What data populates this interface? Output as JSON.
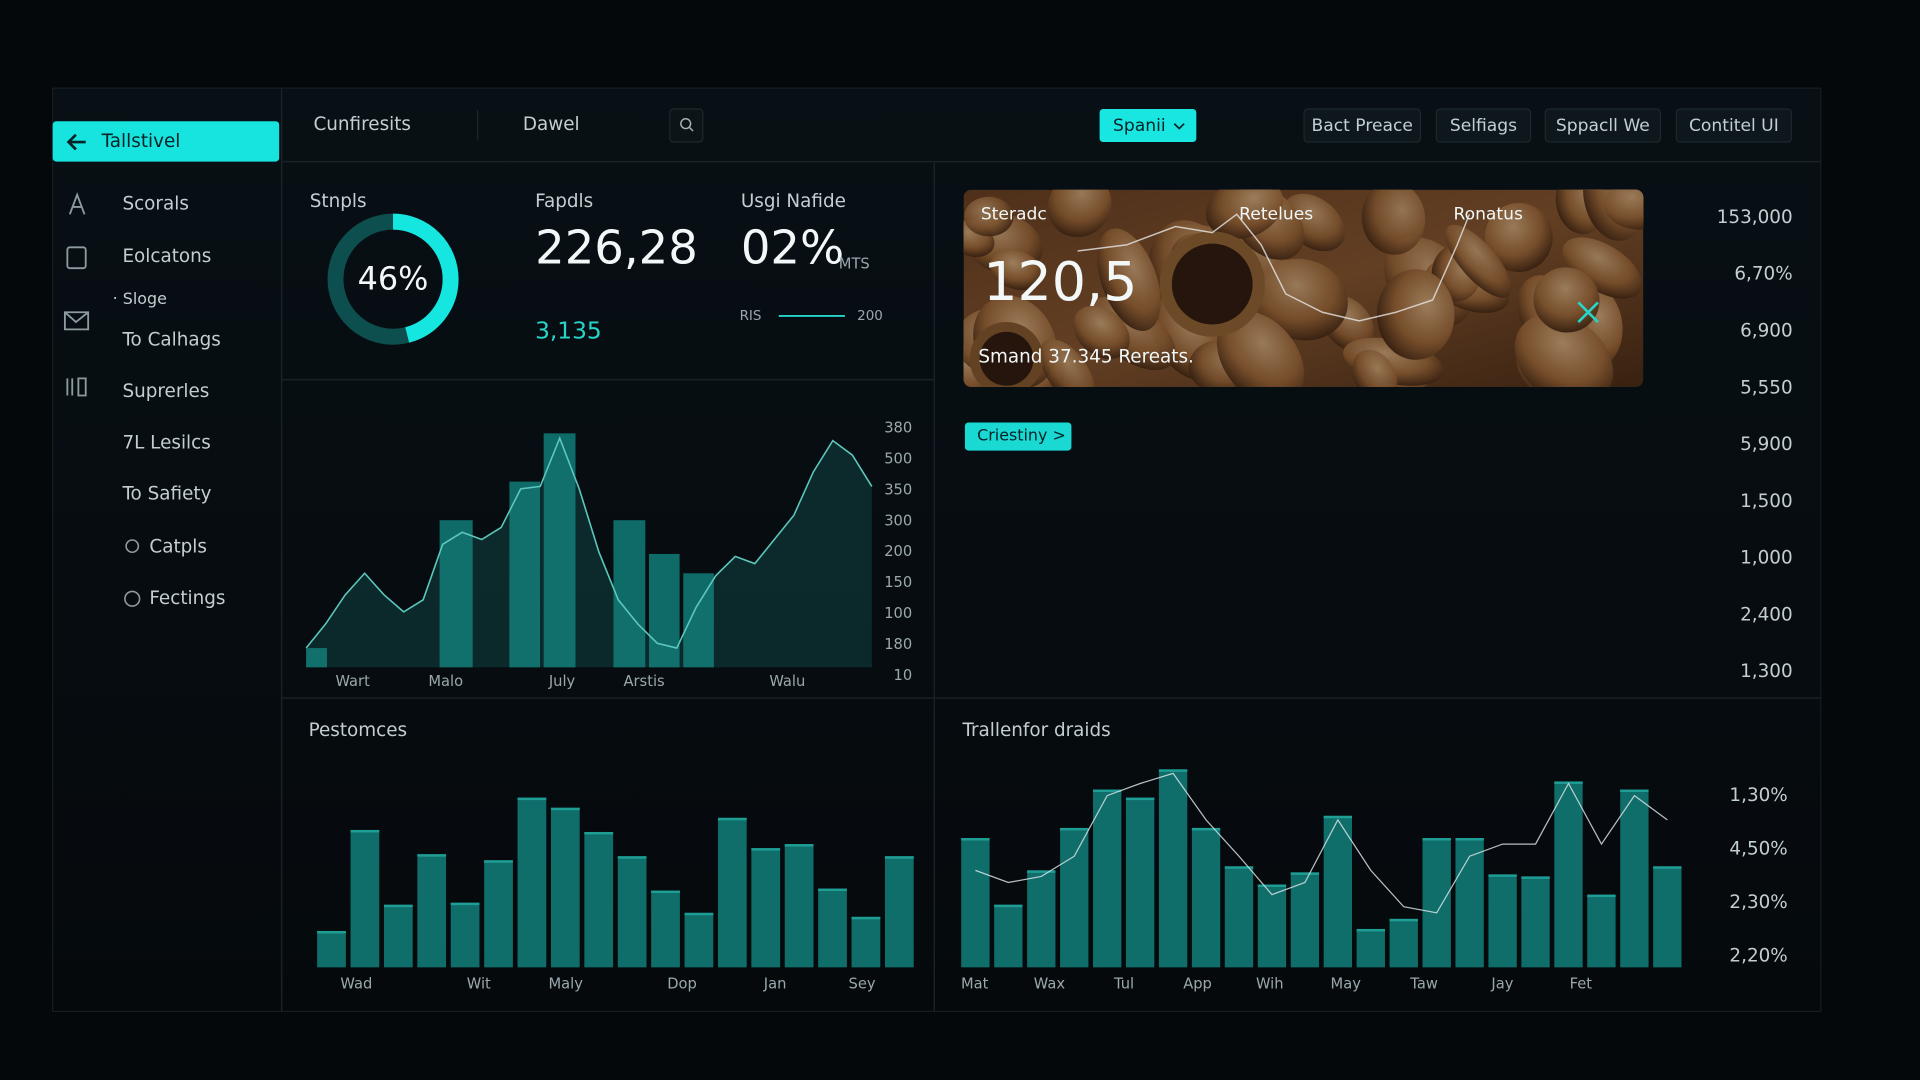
{
  "sidebar": {
    "active": "Tallstivel",
    "items": [
      "Scorals",
      "Eolcatons",
      "Sloge",
      "To Calhags",
      "Suprerles",
      "7L Lesilcs",
      "To Safiety",
      "Catpls",
      "Fectings"
    ]
  },
  "topbar": {
    "tabs": [
      "Cunfiresits",
      "Dawel"
    ],
    "primary": "Spanii",
    "buttons": [
      "Bact Preace",
      "Selfiags",
      "Sppacll We",
      "Contitel UI"
    ]
  },
  "kpis": [
    {
      "label": "Stnpls",
      "value": 46,
      "value_label": "46%"
    },
    {
      "label": "Fapdls",
      "value": "226,28",
      "sub": "3,135"
    },
    {
      "label": "Usgi Nafide",
      "value": "02%",
      "unit": "MTS",
      "range_start": "RIS",
      "range_end": "200"
    }
  ],
  "trend": {
    "ylim": [
      0,
      100
    ],
    "bars": [
      8,
      61,
      77,
      97,
      61,
      47,
      39
    ],
    "line": [
      8,
      18,
      30,
      39,
      30,
      23,
      28,
      51,
      56,
      53,
      58,
      74,
      75,
      95,
      74,
      48,
      28,
      18,
      10,
      8,
      25,
      38,
      46,
      43,
      53,
      63,
      81,
      94,
      88,
      75
    ],
    "x_labels": [
      "Wart",
      "Malo",
      "July",
      "Arstis",
      "Walu"
    ],
    "axis_labels": [
      "380",
      "500",
      "350",
      "300",
      "200",
      "150",
      "100",
      "180",
      "10"
    ]
  },
  "feature": {
    "labels": [
      "Steradc",
      "Retelues",
      "Ronatus"
    ],
    "value": "120,5",
    "caption": "Smand 37.345 Rereats.",
    "tag": "Criestiny >",
    "axis_labels": [
      "153,000",
      "6,70%",
      "6,900",
      "5,550",
      "5,900",
      "1,500",
      "1,000",
      "2,400",
      "1,300"
    ]
  },
  "performances": {
    "title": "Pestomces",
    "ylim": [
      0,
      100
    ],
    "bars": [
      18,
      68,
      31,
      56,
      32,
      53,
      84,
      79,
      67,
      55,
      38,
      27,
      74,
      59,
      61,
      39,
      25,
      55
    ],
    "x_labels": [
      "Wad",
      "Wit",
      "Maly",
      "Dop",
      "Jan",
      "Sey"
    ]
  },
  "trends2": {
    "title": "Trallenfor draids",
    "ylim": [
      0,
      100
    ],
    "bars": [
      64,
      31,
      48,
      69,
      88,
      84,
      98,
      69,
      50,
      41,
      47,
      75,
      19,
      24,
      64,
      64,
      46,
      45,
      92,
      36,
      88,
      50
    ],
    "line": [
      48,
      42,
      45,
      55,
      85,
      91,
      96,
      73,
      55,
      36,
      42,
      73,
      48,
      30,
      27,
      55,
      61,
      61,
      91,
      61,
      85,
      73
    ],
    "x_labels": [
      "Mat",
      "Wax",
      "Tul",
      "App",
      "Wih",
      "May",
      "Taw",
      "Jay",
      "Fet"
    ],
    "axis_labels": [
      "1,30%",
      "4,50%",
      "2,30%",
      "2,20%"
    ]
  }
}
